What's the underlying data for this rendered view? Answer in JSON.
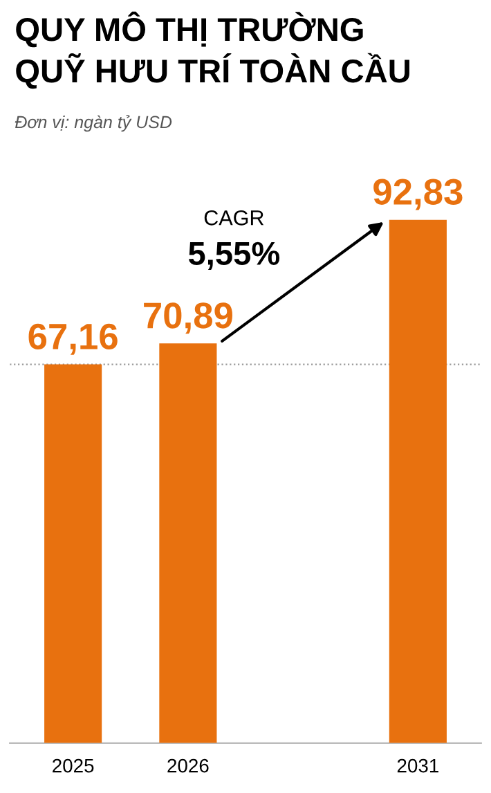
{
  "chart_data": {
    "type": "bar",
    "title": "QUY MÔ THỊ TRƯỜNG\nQUỸ HƯU TRÍ TOÀN CẦU",
    "subtitle": "Đơn vị: ngàn tỷ USD",
    "categories": [
      "2025",
      "2026",
      null,
      "2031"
    ],
    "values": [
      67.16,
      70.89,
      null,
      92.83
    ],
    "value_labels": [
      "67,16",
      "70,89",
      null,
      "92,83"
    ],
    "color": "#e8710f",
    "annotations": [
      "CAGR",
      "5,55%"
    ],
    "ref_lines": [
      {
        "axis": "y",
        "value": 67.16,
        "color": "#999999",
        "line_style": "dotted"
      }
    ],
    "tick_labels": "x",
    "grid": false,
    "legend": false
  }
}
